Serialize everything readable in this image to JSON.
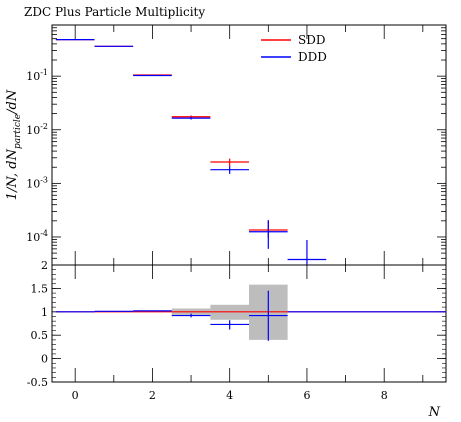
{
  "chart_data": {
    "type": "histogram",
    "title": "ZDC Plus Particle Multiplicity",
    "xlabel": "N",
    "ylabel": "1/N, dN_particle/dN",
    "xlim": [
      -0.6,
      9.6
    ],
    "xticks": [
      0,
      2,
      4,
      6,
      8
    ],
    "ylim_log": [
      3e-05,
      0.9
    ],
    "yticks_log": [
      {
        "value": 0.1,
        "label": "10^-1"
      },
      {
        "value": 0.01,
        "label": "10^-2"
      },
      {
        "value": 0.001,
        "label": "10^-3"
      },
      {
        "value": 0.0001,
        "label": "10^-4"
      }
    ],
    "bin_edges": [
      -0.5,
      0.5,
      1.5,
      2.5,
      3.5,
      4.5,
      5.5,
      6.5
    ],
    "legend_position": "top-center",
    "series": [
      {
        "name": "SDD",
        "color": "#ff0000",
        "values": [
          0.48,
          0.36,
          0.105,
          0.0175,
          0.0025,
          0.000135,
          null
        ],
        "err_lo": [
          0,
          0,
          0,
          0.001,
          0.0004,
          4e-05,
          null
        ],
        "err_hi": [
          0,
          0,
          0,
          0.001,
          0.0004,
          7e-05,
          null
        ]
      },
      {
        "name": "DDD",
        "color": "#0000ff",
        "values": [
          0.48,
          0.36,
          0.103,
          0.0165,
          0.0018,
          0.000125,
          3.8e-05
        ],
        "err_lo": [
          0,
          0,
          0,
          0.001,
          0.0003,
          6.5e-05,
          1.2e-05
        ],
        "err_hi": [
          0,
          0,
          0,
          0.001,
          0.0003,
          8e-05,
          5e-05
        ]
      }
    ],
    "ratio": {
      "ylim": [
        -0.5,
        2
      ],
      "yticks": [
        -0.5,
        0,
        0.5,
        1,
        1.5,
        2
      ],
      "bands": [
        {
          "x0": 2.5,
          "x1": 3.5,
          "lo": 0.93,
          "hi": 1.07
        },
        {
          "x0": 3.5,
          "x1": 4.5,
          "lo": 0.83,
          "hi": 1.15
        },
        {
          "x0": 4.5,
          "x1": 5.5,
          "lo": 0.4,
          "hi": 1.58
        }
      ],
      "series": [
        {
          "color": "#ff0000",
          "x0": -0.5,
          "x1": 9.6,
          "value": 1.0
        },
        {
          "color": "#0000ff",
          "points": [
            {
              "x0": -0.5,
              "x1": 0.5,
              "v": 1.0,
              "lo": 1.0,
              "hi": 1.0
            },
            {
              "x0": 0.5,
              "x1": 1.5,
              "v": 1.01,
              "lo": 1.01,
              "hi": 1.01
            },
            {
              "x0": 1.5,
              "x1": 2.5,
              "v": 1.02,
              "lo": 1.02,
              "hi": 1.02
            },
            {
              "x0": 2.5,
              "x1": 3.5,
              "v": 0.92,
              "lo": 0.88,
              "hi": 0.96
            },
            {
              "x0": 3.5,
              "x1": 4.5,
              "v": 0.73,
              "lo": 0.62,
              "hi": 0.82
            },
            {
              "x0": 4.5,
              "x1": 5.5,
              "v": 0.92,
              "lo": 0.38,
              "hi": 1.45
            },
            {
              "x0": 5.5,
              "x1": 9.6,
              "v": 1.0,
              "lo": 1.0,
              "hi": 1.0
            }
          ]
        }
      ]
    }
  }
}
